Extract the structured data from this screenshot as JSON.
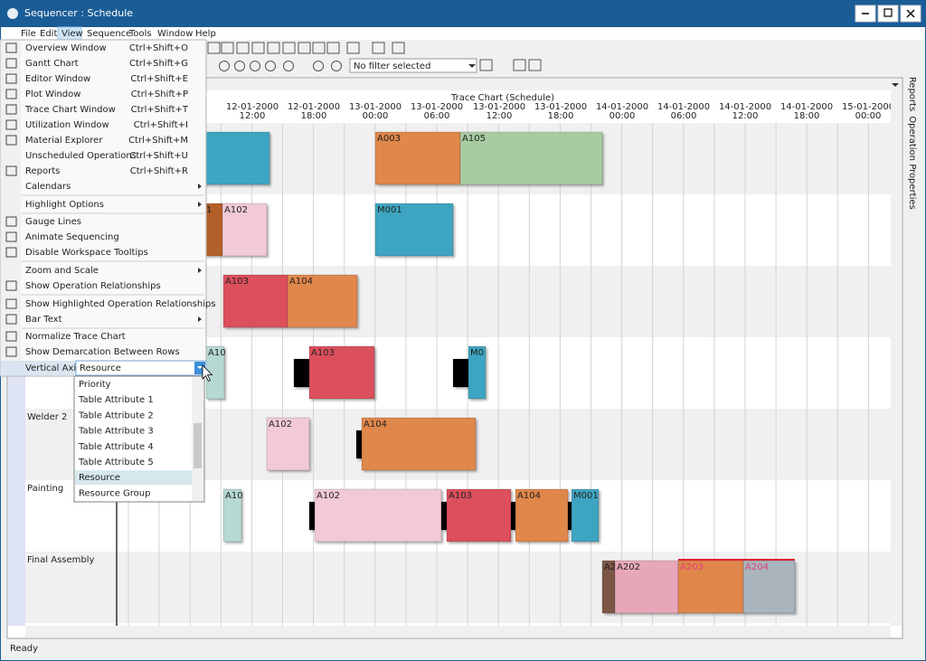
{
  "window": {
    "title": "Sequencer : Schedule"
  },
  "menu_bar": [
    "File",
    "Edit",
    "View",
    "Sequence",
    "Tools",
    "Window",
    "Help"
  ],
  "toolbar": {
    "filter": "No filter selected"
  },
  "chart": {
    "title": "Trace Chart (Schedule)",
    "time_headers": [
      {
        "date": "12-01-2000",
        "time": "12:00"
      },
      {
        "date": "12-01-2000",
        "time": "18:00"
      },
      {
        "date": "13-01-2000",
        "time": "00:00"
      },
      {
        "date": "13-01-2000",
        "time": "06:00"
      },
      {
        "date": "13-01-2000",
        "time": "12:00"
      },
      {
        "date": "13-01-2000",
        "time": "18:00"
      },
      {
        "date": "14-01-2000",
        "time": "00:00"
      },
      {
        "date": "14-01-2000",
        "time": "06:00"
      },
      {
        "date": "14-01-2000",
        "time": "12:00"
      },
      {
        "date": "14-01-2000",
        "time": "18:00"
      },
      {
        "date": "15-01-2000",
        "time": "00:00"
      }
    ],
    "row_labels": [
      "Welder 2",
      "Painting",
      "Final Assembly"
    ],
    "bar_labels": [
      [
        "A003",
        "A105"
      ],
      [
        "1",
        "A102",
        "M001"
      ],
      [
        "A103",
        "A104"
      ],
      [
        "A10",
        "A103",
        "M0"
      ],
      [
        "A102",
        "A104"
      ],
      [
        "A10",
        "A102",
        "A103",
        "A104",
        "M001"
      ],
      [
        "A2",
        "A202",
        "A203",
        "A204"
      ]
    ]
  },
  "side_tabs": [
    "Reports",
    "Operation Properties"
  ],
  "view_menu": {
    "items": [
      {
        "label": "Overview Window",
        "shortcut": "Ctrl+Shift+O"
      },
      {
        "label": "Gantt Chart",
        "shortcut": "Ctrl+Shift+G"
      },
      {
        "label": "Editor Window",
        "shortcut": "Ctrl+Shift+E"
      },
      {
        "label": "Plot Window",
        "shortcut": "Ctrl+Shift+P"
      },
      {
        "label": "Trace Chart Window",
        "shortcut": "Ctrl+Shift+T"
      },
      {
        "label": "Utilization Window",
        "shortcut": "Ctrl+Shift+I"
      },
      {
        "label": "Material Explorer",
        "shortcut": "Ctrl+Shift+M"
      },
      {
        "label": "Unscheduled Operations",
        "shortcut": "Ctrl+Shift+U"
      },
      {
        "label": "Reports",
        "shortcut": "Ctrl+Shift+R"
      },
      {
        "label": "Calendars",
        "submenu": true
      },
      {
        "label": "Highlight Options",
        "submenu": true
      },
      {
        "label": "Gauge Lines"
      },
      {
        "label": "Animate Sequencing"
      },
      {
        "label": "Disable Workspace Tooltips"
      },
      {
        "label": "Zoom and Scale",
        "submenu": true
      },
      {
        "label": "Show Operation Relationships"
      },
      {
        "label": "Show Highlighted Operation Relationships"
      },
      {
        "label": "Bar Text",
        "submenu": true
      },
      {
        "label": "Normalize Trace Chart"
      },
      {
        "label": "Show Demarcation Between Rows"
      }
    ],
    "vertical_axis": {
      "label": "Vertical Axis",
      "selected": "Resource",
      "options": [
        "Priority",
        "Table Attribute 1",
        "Table Attribute 2",
        "Table Attribute 3",
        "Table Attribute 4",
        "Table Attribute 5",
        "Resource",
        "Resource Group"
      ]
    }
  },
  "status": "Ready"
}
